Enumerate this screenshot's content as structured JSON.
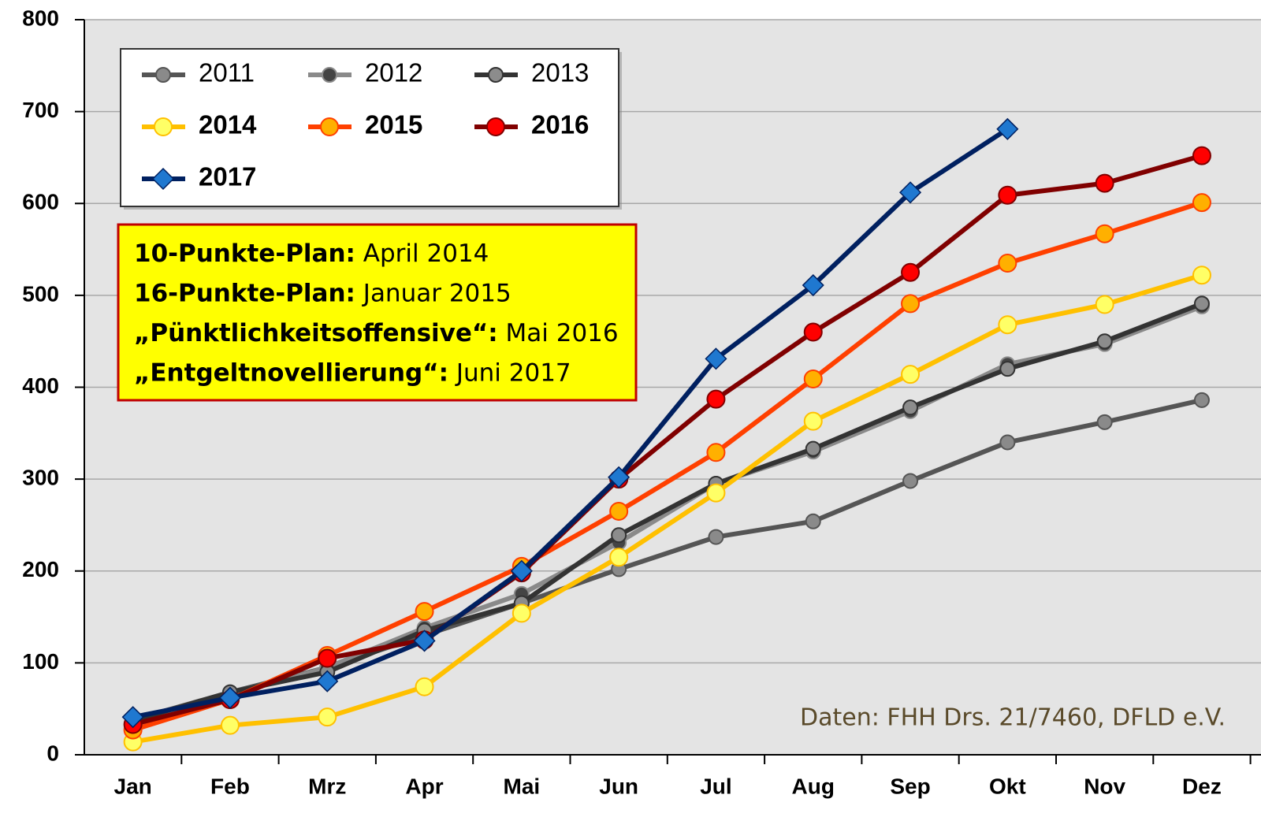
{
  "chart_data": {
    "type": "line",
    "categories": [
      "Jan",
      "Feb",
      "Mrz",
      "Apr",
      "Mai",
      "Jun",
      "Jul",
      "Aug",
      "Sep",
      "Okt",
      "Nov",
      "Dez"
    ],
    "series": [
      {
        "name": "2011",
        "color": "#555555",
        "marker_color": "#8a8a8a",
        "marker": "circle",
        "values": [
          38,
          68,
          95,
          130,
          165,
          202,
          237,
          254,
          298,
          340,
          362,
          386
        ]
      },
      {
        "name": "2012",
        "color": "#8a8a8a",
        "marker_color": "#444444",
        "marker": "circle",
        "values": [
          35,
          65,
          95,
          138,
          175,
          231,
          295,
          330,
          374,
          425,
          447,
          488
        ]
      },
      {
        "name": "2013",
        "color": "#333333",
        "marker_color": "#8c8c8c",
        "marker": "circle",
        "values": [
          37,
          68,
          90,
          135,
          165,
          239,
          295,
          333,
          378,
          420,
          450,
          491
        ]
      },
      {
        "name": "2014",
        "color": "#ffc000",
        "marker_color": "#ffff66",
        "marker": "circle",
        "values": [
          14,
          32,
          41,
          74,
          154,
          215,
          285,
          363,
          414,
          468,
          490,
          522
        ]
      },
      {
        "name": "2015",
        "color": "#ff4000",
        "marker_color": "#ffb000",
        "marker": "circle",
        "values": [
          27,
          60,
          108,
          156,
          205,
          265,
          329,
          409,
          491,
          535,
          567,
          601
        ]
      },
      {
        "name": "2016",
        "color": "#800000",
        "marker_color": "#ff0000",
        "marker": "circle",
        "values": [
          33,
          60,
          105,
          125,
          198,
          300,
          387,
          460,
          525,
          609,
          622,
          652
        ]
      },
      {
        "name": "2017",
        "color": "#002060",
        "marker_color": "#1f78d0",
        "marker": "diamond",
        "values": [
          41,
          62,
          80,
          124,
          200,
          302,
          431,
          511,
          612,
          681,
          null,
          null
        ]
      }
    ],
    "ylim": [
      0,
      800
    ],
    "yticks": [
      0,
      100,
      200,
      300,
      400,
      500,
      600,
      700,
      800
    ],
    "grid": true,
    "legend": "top-left",
    "annotations": [
      {
        "label": "10-Punkte-Plan:",
        "text": "April 2014"
      },
      {
        "label": "16-Punkte-Plan:",
        "text": "Januar 2015"
      },
      {
        "label": "„Pünktlichkeitsoffensive“:",
        "text": "Mai 2016"
      },
      {
        "label": "„Entgeltnovellierung“:",
        "text": "Juni 2017"
      }
    ],
    "source": "Daten: FHH Drs. 21/7460, DFLD e.V."
  }
}
